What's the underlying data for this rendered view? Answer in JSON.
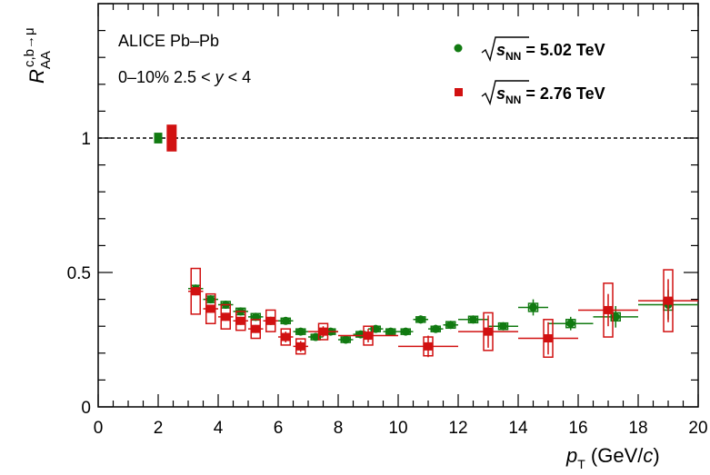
{
  "chart_data": {
    "type": "scatter",
    "xlabel_main": "p",
    "xlabel_sub": "T",
    "xlabel_units_pre": " (GeV/",
    "xlabel_units_var": "c",
    "xlabel_units_post": ")",
    "ylabel_main": "R",
    "ylabel_sub": "AA",
    "ylabel_sup": "c,b→μ",
    "xlim": [
      0,
      20
    ],
    "ylim": [
      0,
      1.5
    ],
    "x_ticks": [
      "0",
      "2",
      "4",
      "6",
      "8",
      "10",
      "12",
      "14",
      "16",
      "18",
      "20"
    ],
    "y_ticks": [
      "0",
      "0.5",
      "1"
    ],
    "reference_line": 1,
    "annotations": [
      "ALICE Pb–Pb",
      "0–10%  2.5 < ",
      "y",
      " < 4"
    ],
    "legend": [
      {
        "sqrt": "s",
        "sub": "NN",
        "label": " = 5.02 TeV",
        "color": "#117a11",
        "marker": "circle"
      },
      {
        "sqrt": "s",
        "sub": "NN",
        "label": " = 2.76 TeV",
        "color": "#d11111",
        "marker": "square"
      }
    ],
    "norm_uncertainty": [
      {
        "x": 2.0,
        "y": 1.0,
        "err": 0.02,
        "color": "#117a11"
      },
      {
        "x": 2.45,
        "y": 1.0,
        "err": 0.05,
        "color": "#d11111"
      }
    ],
    "series": [
      {
        "name": "5.02 TeV",
        "color": "#117a11",
        "marker": "circle",
        "points": [
          {
            "x": 3.25,
            "y": 0.44,
            "xerr": 0.25,
            "yerr": 0.015,
            "sysy": 0.012
          },
          {
            "x": 3.75,
            "y": 0.4,
            "xerr": 0.25,
            "yerr": 0.015,
            "sysy": 0.012
          },
          {
            "x": 4.25,
            "y": 0.38,
            "xerr": 0.25,
            "yerr": 0.015,
            "sysy": 0.012
          },
          {
            "x": 4.75,
            "y": 0.355,
            "xerr": 0.25,
            "yerr": 0.015,
            "sysy": 0.012
          },
          {
            "x": 5.25,
            "y": 0.335,
            "xerr": 0.25,
            "yerr": 0.015,
            "sysy": 0.012
          },
          {
            "x": 5.75,
            "y": 0.32,
            "xerr": 0.25,
            "yerr": 0.012,
            "sysy": 0.012
          },
          {
            "x": 6.25,
            "y": 0.32,
            "xerr": 0.25,
            "yerr": 0.012,
            "sysy": 0.01
          },
          {
            "x": 6.75,
            "y": 0.28,
            "xerr": 0.25,
            "yerr": 0.012,
            "sysy": 0.01
          },
          {
            "x": 7.25,
            "y": 0.26,
            "xerr": 0.25,
            "yerr": 0.012,
            "sysy": 0.01
          },
          {
            "x": 7.75,
            "y": 0.28,
            "xerr": 0.25,
            "yerr": 0.012,
            "sysy": 0.01
          },
          {
            "x": 8.25,
            "y": 0.25,
            "xerr": 0.25,
            "yerr": 0.012,
            "sysy": 0.01
          },
          {
            "x": 8.75,
            "y": 0.27,
            "xerr": 0.25,
            "yerr": 0.012,
            "sysy": 0.01
          },
          {
            "x": 9.25,
            "y": 0.29,
            "xerr": 0.25,
            "yerr": 0.012,
            "sysy": 0.01
          },
          {
            "x": 9.75,
            "y": 0.28,
            "xerr": 0.25,
            "yerr": 0.012,
            "sysy": 0.01
          },
          {
            "x": 10.25,
            "y": 0.28,
            "xerr": 0.25,
            "yerr": 0.012,
            "sysy": 0.01
          },
          {
            "x": 10.75,
            "y": 0.325,
            "xerr": 0.25,
            "yerr": 0.015,
            "sysy": 0.01
          },
          {
            "x": 11.25,
            "y": 0.29,
            "xerr": 0.25,
            "yerr": 0.015,
            "sysy": 0.01
          },
          {
            "x": 11.75,
            "y": 0.305,
            "xerr": 0.25,
            "yerr": 0.015,
            "sysy": 0.012
          },
          {
            "x": 12.5,
            "y": 0.325,
            "xerr": 0.5,
            "yerr": 0.015,
            "sysy": 0.012
          },
          {
            "x": 13.5,
            "y": 0.3,
            "xerr": 0.5,
            "yerr": 0.015,
            "sysy": 0.012
          },
          {
            "x": 14.5,
            "y": 0.37,
            "xerr": 0.5,
            "yerr": 0.03,
            "sysy": 0.015
          },
          {
            "x": 15.75,
            "y": 0.31,
            "xerr": 0.75,
            "yerr": 0.025,
            "sysy": 0.015
          },
          {
            "x": 17.25,
            "y": 0.335,
            "xerr": 0.75,
            "yerr": 0.04,
            "sysy": 0.015
          },
          {
            "x": 19.0,
            "y": 0.38,
            "xerr": 1.0,
            "yerr": 0.055,
            "sysy": 0.02
          }
        ]
      },
      {
        "name": "2.76 TeV",
        "color": "#d11111",
        "marker": "square",
        "points": [
          {
            "x": 3.25,
            "y": 0.43,
            "xerr": 0.25,
            "yerr": 0.015,
            "sysy": 0.085
          },
          {
            "x": 3.75,
            "y": 0.365,
            "xerr": 0.25,
            "yerr": 0.015,
            "sysy": 0.055
          },
          {
            "x": 4.25,
            "y": 0.335,
            "xerr": 0.25,
            "yerr": 0.015,
            "sysy": 0.045
          },
          {
            "x": 4.75,
            "y": 0.32,
            "xerr": 0.25,
            "yerr": 0.015,
            "sysy": 0.035
          },
          {
            "x": 5.25,
            "y": 0.29,
            "xerr": 0.25,
            "yerr": 0.015,
            "sysy": 0.035
          },
          {
            "x": 5.75,
            "y": 0.32,
            "xerr": 0.25,
            "yerr": 0.015,
            "sysy": 0.04
          },
          {
            "x": 6.25,
            "y": 0.26,
            "xerr": 0.25,
            "yerr": 0.02,
            "sysy": 0.03
          },
          {
            "x": 6.75,
            "y": 0.225,
            "xerr": 0.25,
            "yerr": 0.02,
            "sysy": 0.028
          },
          {
            "x": 7.5,
            "y": 0.28,
            "xerr": 0.5,
            "yerr": 0.02,
            "sysy": 0.03
          },
          {
            "x": 9.0,
            "y": 0.265,
            "xerr": 1.0,
            "yerr": 0.025,
            "sysy": 0.035
          },
          {
            "x": 11.0,
            "y": 0.225,
            "xerr": 1.0,
            "yerr": 0.04,
            "sysy": 0.035
          },
          {
            "x": 13.0,
            "y": 0.28,
            "xerr": 1.0,
            "yerr": 0.06,
            "sysy": 0.07
          },
          {
            "x": 15.0,
            "y": 0.255,
            "xerr": 1.0,
            "yerr": 0.06,
            "sysy": 0.07
          },
          {
            "x": 17.0,
            "y": 0.36,
            "xerr": 1.0,
            "yerr": 0.06,
            "sysy": 0.1
          },
          {
            "x": 19.0,
            "y": 0.395,
            "xerr": 1.0,
            "yerr": 0.08,
            "sysy": 0.115
          }
        ]
      }
    ]
  }
}
